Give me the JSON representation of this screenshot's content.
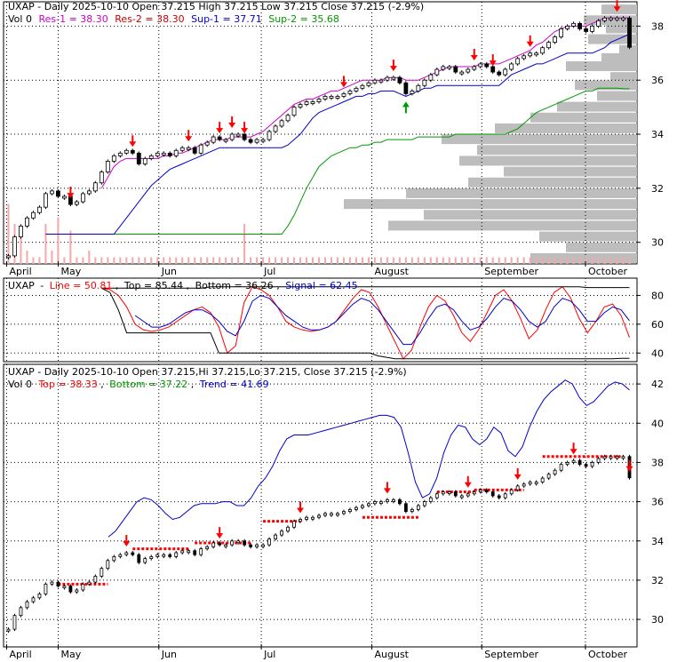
{
  "colors": {
    "up": "#ffffff",
    "down": "#000000",
    "res1": "#cc00cc",
    "sup1": "#0000cc",
    "sup2": "#009900",
    "volume": "#f4a8a8",
    "profile": "#bdbdbd",
    "line": "#ff0000",
    "signal": "#0000cc",
    "band": "#000000",
    "top": "#ff0000",
    "bottom": "#009900",
    "trend": "#0000cc",
    "arrow_down": "#ff0000",
    "arrow_up": "#009900",
    "grid": "#000000"
  },
  "x_labels": [
    "April",
    "May",
    "Jun",
    "Jul",
    "August",
    "September",
    "October"
  ],
  "panel1": {
    "title": "UXAP - Daily 2025-10-10 Open 37.215  High 37.215  Low 37.215  Close 37.215 (-2.9%)",
    "legend": {
      "vol": "Vol 0",
      "res1": "Res-1 = 38.30",
      "res2": "Res-2 = 38.30",
      "sup1": "Sup-1 = 37.71",
      "sup2": "Sup-2 = 35.68"
    }
  },
  "panel2": {
    "title": "UXAP",
    "legend": {
      "line": "Line = 50.81",
      "top": "Top = 85.44",
      "bottom": "Bottom = 36.26",
      "signal": "Signal = 62.45"
    }
  },
  "panel3": {
    "title": "UXAP - Daily 2025-10-10 Open 37.215,Hi 37.215,Lo 37.215, Close 37.215 (-2.9%)",
    "legend": {
      "vol": "Vol 0",
      "top": "Top = 38.33",
      "bottom": "Bottom = 37.22",
      "trend": "Trend = 41.69"
    }
  },
  "chart_data": [
    {
      "type": "candlestick",
      "title": "UXAP - Daily 2025-10-10 Open 37.215  High 37.215  Low 37.215  Close 37.215 (-2.9%)",
      "y_ticks": [
        30,
        32,
        34,
        36,
        38
      ],
      "ylim": [
        29.2,
        38.9
      ],
      "x_ticks": [
        "April",
        "May",
        "Jun",
        "Jul",
        "August",
        "September",
        "October"
      ],
      "grid": true,
      "close": [
        29.5,
        30.2,
        30.6,
        30.9,
        31.1,
        31.3,
        31.8,
        31.9,
        31.7,
        31.7,
        31.4,
        31.5,
        31.8,
        31.9,
        32.2,
        32.6,
        33.0,
        33.2,
        33.3,
        33.4,
        33.3,
        32.9,
        33.1,
        33.2,
        33.3,
        33.3,
        33.2,
        33.4,
        33.5,
        33.5,
        33.3,
        33.6,
        33.7,
        33.9,
        33.8,
        33.8,
        34.0,
        34.0,
        33.8,
        33.7,
        33.8,
        33.8,
        34.1,
        34.3,
        34.5,
        34.7,
        35.0,
        35.1,
        35.2,
        35.2,
        35.3,
        35.4,
        35.4,
        35.4,
        35.5,
        35.6,
        35.7,
        35.8,
        35.9,
        36.0,
        36.0,
        36.1,
        36.1,
        35.9,
        35.5,
        35.6,
        35.8,
        36.0,
        36.2,
        36.4,
        36.5,
        36.5,
        36.3,
        36.3,
        36.4,
        36.5,
        36.6,
        36.5,
        36.3,
        36.2,
        36.4,
        36.6,
        36.8,
        36.9,
        37.0,
        37.0,
        37.2,
        37.4,
        37.6,
        37.9,
        38.0,
        38.1,
        37.9,
        37.8,
        38.0,
        38.2,
        38.3,
        38.3,
        38.3,
        38.3,
        37.215
      ],
      "res1": [
        null,
        null,
        null,
        null,
        null,
        null,
        null,
        null,
        null,
        null,
        null,
        null,
        null,
        null,
        null,
        32.0,
        32.4,
        32.8,
        33.0,
        33.1,
        33.1,
        33.1,
        33.1,
        33.1,
        33.1,
        33.2,
        33.2,
        33.3,
        33.3,
        33.4,
        33.5,
        33.6,
        33.7,
        33.8,
        33.8,
        33.8,
        33.9,
        33.9,
        33.9,
        33.9,
        34.0,
        34.1,
        34.3,
        34.5,
        34.7,
        34.9,
        35.1,
        35.2,
        35.3,
        35.3,
        35.4,
        35.5,
        35.6,
        35.6,
        35.7,
        35.8,
        35.9,
        36.0,
        36.0,
        36.0,
        36.0,
        36.1,
        36.1,
        36.1,
        36.0,
        36.0,
        36.0,
        36.1,
        36.2,
        36.3,
        36.4,
        36.5,
        36.5,
        36.5,
        36.5,
        36.5,
        36.6,
        36.6,
        36.6,
        36.6,
        36.7,
        36.8,
        36.9,
        37.0,
        37.1,
        37.3,
        37.4,
        37.6,
        37.8,
        37.9,
        38.0,
        38.0,
        38.0,
        38.0,
        38.1,
        38.2,
        38.3,
        38.3,
        38.3,
        38.3,
        38.3
      ],
      "sup1": [
        null,
        null,
        null,
        null,
        null,
        null,
        30.3,
        30.3,
        30.3,
        30.3,
        30.3,
        30.3,
        30.3,
        30.3,
        30.3,
        30.3,
        30.3,
        30.3,
        30.6,
        30.9,
        31.2,
        31.5,
        31.8,
        32.1,
        32.3,
        32.5,
        32.7,
        32.8,
        32.9,
        33.0,
        33.1,
        33.2,
        33.3,
        33.4,
        33.5,
        33.5,
        33.5,
        33.5,
        33.5,
        33.5,
        33.5,
        33.5,
        33.5,
        33.5,
        33.5,
        33.6,
        33.8,
        34.0,
        34.3,
        34.6,
        34.8,
        34.9,
        35.0,
        35.1,
        35.2,
        35.3,
        35.4,
        35.4,
        35.5,
        35.5,
        35.6,
        35.6,
        35.6,
        35.5,
        35.4,
        35.5,
        35.6,
        35.7,
        35.7,
        35.8,
        35.8,
        35.8,
        35.8,
        35.8,
        35.8,
        35.8,
        35.8,
        35.8,
        35.8,
        35.8,
        36.0,
        36.2,
        36.3,
        36.4,
        36.5,
        36.6,
        36.6,
        36.7,
        36.8,
        36.9,
        37.0,
        37.0,
        37.0,
        37.0,
        37.0,
        37.1,
        37.2,
        37.4,
        37.5,
        37.6,
        37.71
      ],
      "sup2": [
        null,
        null,
        null,
        null,
        null,
        null,
        30.3,
        30.3,
        30.3,
        30.3,
        30.3,
        30.3,
        30.3,
        30.3,
        30.3,
        30.3,
        30.3,
        30.3,
        30.3,
        30.3,
        30.3,
        30.3,
        30.3,
        30.3,
        30.3,
        30.3,
        30.3,
        30.3,
        30.3,
        30.3,
        30.3,
        30.3,
        30.3,
        30.3,
        30.3,
        30.3,
        30.3,
        30.3,
        30.3,
        30.3,
        30.3,
        30.3,
        30.3,
        30.3,
        30.3,
        30.6,
        31.0,
        31.5,
        32.0,
        32.4,
        32.8,
        33.0,
        33.2,
        33.3,
        33.4,
        33.5,
        33.5,
        33.6,
        33.6,
        33.7,
        33.7,
        33.8,
        33.8,
        33.8,
        33.8,
        33.8,
        33.9,
        33.9,
        33.9,
        33.9,
        33.9,
        33.9,
        34.0,
        34.0,
        34.0,
        34.0,
        34.0,
        34.0,
        34.0,
        34.0,
        34.0,
        34.1,
        34.2,
        34.4,
        34.6,
        34.8,
        34.9,
        35.0,
        35.1,
        35.2,
        35.3,
        35.4,
        35.5,
        35.6,
        35.6,
        35.7,
        35.7,
        35.7,
        35.7,
        35.68,
        35.68
      ],
      "volume": [
        0.45,
        0.3,
        0.2,
        0.1,
        0.05,
        0.05,
        0.3,
        0.1,
        0.35,
        0.05,
        0.25,
        0.05,
        0.05,
        0.1,
        0.05,
        0.05,
        0.05,
        0.05,
        0.05,
        0.05,
        0.05,
        0.05,
        0.05,
        0.05,
        0.05,
        0.05,
        0.05,
        0.05,
        0.05,
        0.05,
        0.05,
        0.05,
        0.05,
        0.05,
        0.05,
        0.05,
        0.05,
        0.05,
        0.3,
        0.05,
        0.05,
        0.05,
        0.05,
        0.05,
        0.05,
        0.05,
        0.05,
        0.05,
        0.05,
        0.05,
        0.05,
        0.05,
        0.05,
        0.05,
        0.05,
        0.05,
        0.05,
        0.05,
        0.05,
        0.05,
        0.05,
        0.05,
        0.05,
        0.05,
        0.05,
        0.05,
        0.05,
        0.05,
        0.05,
        0.05,
        0.05,
        0.05,
        0.05,
        0.05,
        0.05,
        0.05,
        0.05,
        0.05,
        0.05,
        0.05,
        0.05,
        0.05,
        0.05,
        0.05,
        0.05,
        0.05,
        0.05,
        0.05,
        0.05,
        0.05,
        0.05,
        0.05,
        0.05,
        0.05,
        0.05,
        0.05,
        0.05,
        0.05,
        0.05,
        0.05,
        0.05
      ],
      "down_arrows": [
        10,
        20,
        29,
        34,
        36,
        38,
        54,
        62,
        75,
        78,
        84,
        98
      ],
      "up_arrows": [
        64
      ]
    },
    {
      "type": "line",
      "title": "UXAP",
      "y_ticks": [
        40,
        60,
        80
      ],
      "ylim": [
        34,
        92
      ],
      "grid": true,
      "series": [
        {
          "name": "Line",
          "values": [
            85,
            84,
            80,
            72,
            60,
            56,
            55,
            56,
            58,
            62,
            66,
            70,
            72,
            68,
            58,
            40,
            45,
            75,
            86,
            84,
            80,
            72,
            62,
            58,
            56,
            55,
            56,
            58,
            62,
            70,
            78,
            84,
            82,
            72,
            60,
            48,
            36,
            42,
            58,
            72,
            80,
            76,
            66,
            54,
            48,
            56,
            68,
            80,
            84,
            76,
            64,
            50,
            56,
            70,
            82,
            86,
            78,
            64,
            54,
            62,
            72,
            74,
            66,
            50.81
          ]
        },
        {
          "name": "Signal",
          "values": [
            null,
            null,
            null,
            null,
            66,
            62,
            58,
            58,
            60,
            64,
            68,
            70,
            70,
            67,
            62,
            55,
            52,
            62,
            76,
            80,
            78,
            72,
            66,
            62,
            58,
            56,
            56,
            58,
            62,
            68,
            74,
            78,
            76,
            70,
            62,
            54,
            46,
            46,
            54,
            64,
            72,
            74,
            70,
            62,
            56,
            58,
            64,
            72,
            78,
            76,
            70,
            62,
            58,
            62,
            72,
            78,
            76,
            70,
            62,
            62,
            68,
            72,
            70,
            62.45
          ]
        },
        {
          "name": "Top",
          "values": [
            85,
            85,
            85,
            85,
            85,
            85,
            85,
            85,
            85,
            85,
            85,
            85,
            85,
            86,
            86,
            86,
            86,
            86,
            86,
            86,
            86,
            86,
            86,
            86,
            86,
            86,
            86,
            86,
            86,
            86,
            86,
            86,
            86,
            86,
            86,
            86,
            86,
            86,
            86,
            86,
            86,
            86,
            86,
            86,
            86,
            86,
            86,
            86,
            86,
            86,
            86,
            86,
            86,
            86,
            86,
            86,
            86,
            86,
            85.44,
            85.44,
            85.44,
            85.44,
            85.44,
            85.44
          ]
        },
        {
          "name": "Bottom",
          "values": [
            85,
            82,
            70,
            54,
            54,
            54,
            54,
            54,
            54,
            54,
            54,
            54,
            54,
            54,
            40,
            40,
            40,
            40,
            40,
            40,
            40,
            40,
            40,
            40,
            40,
            40,
            40,
            40,
            40,
            40,
            40,
            40,
            40,
            38,
            37,
            36,
            36,
            36,
            36,
            36,
            36,
            36,
            36,
            36,
            36,
            36,
            36,
            36,
            36,
            36,
            36,
            36,
            36,
            36,
            36,
            36,
            36,
            36,
            36,
            36,
            36,
            36,
            36.26,
            36.26
          ]
        }
      ]
    },
    {
      "type": "candlestick",
      "title": "UXAP - Daily 2025-10-10 Open 37.215,Hi 37.215,Lo 37.215, Close 37.215 (-2.9%)",
      "y_ticks": [
        30,
        32,
        34,
        36,
        38,
        40,
        42
      ],
      "ylim": [
        28.6,
        43.0
      ],
      "x_ticks": [
        "April",
        "May",
        "Jun",
        "Jul",
        "August",
        "September",
        "October"
      ],
      "grid": true,
      "trend": [
        null,
        null,
        null,
        null,
        null,
        null,
        null,
        null,
        null,
        null,
        null,
        null,
        null,
        null,
        34.2,
        34.5,
        35.0,
        35.5,
        36.0,
        36.2,
        36.1,
        35.8,
        35.4,
        35.1,
        35.2,
        35.5,
        35.8,
        35.9,
        35.9,
        35.9,
        36.0,
        36.0,
        35.8,
        35.8,
        36.2,
        36.8,
        37.2,
        37.8,
        38.6,
        39.2,
        39.4,
        39.4,
        39.4,
        39.5,
        39.6,
        39.7,
        39.8,
        39.9,
        40.0,
        40.1,
        40.2,
        40.3,
        40.4,
        40.4,
        40.3,
        39.8,
        38.5,
        37.0,
        36.2,
        36.4,
        37.2,
        38.5,
        39.4,
        39.9,
        39.8,
        39.2,
        38.9,
        39.2,
        39.8,
        39.5,
        38.6,
        38.3,
        38.8,
        39.8,
        40.6,
        41.2,
        41.6,
        41.9,
        42.2,
        42.0,
        41.3,
        40.9,
        41.1,
        41.5,
        41.9,
        42.1,
        42.0,
        41.69
      ],
      "top_segments": [
        {
          "x0": 20,
          "x1": 29,
          "y": 33.6
        },
        {
          "x0": 30,
          "x1": 39,
          "y": 33.9
        },
        {
          "x0": 41,
          "x1": 47,
          "y": 35.0
        },
        {
          "x0": 57,
          "x1": 66,
          "y": 35.2
        },
        {
          "x0": 69,
          "x1": 75,
          "y": 36.5
        },
        {
          "x0": 75,
          "x1": 83,
          "y": 36.6
        },
        {
          "x0": 86,
          "x1": 99,
          "y": 38.3
        }
      ],
      "bottom_segments": [
        {
          "x0": 8,
          "x1": 16,
          "y": 31.8
        }
      ],
      "down_arrows": [
        19,
        34,
        47,
        61,
        74,
        82,
        91,
        100
      ],
      "close_ref": "panel1"
    }
  ]
}
